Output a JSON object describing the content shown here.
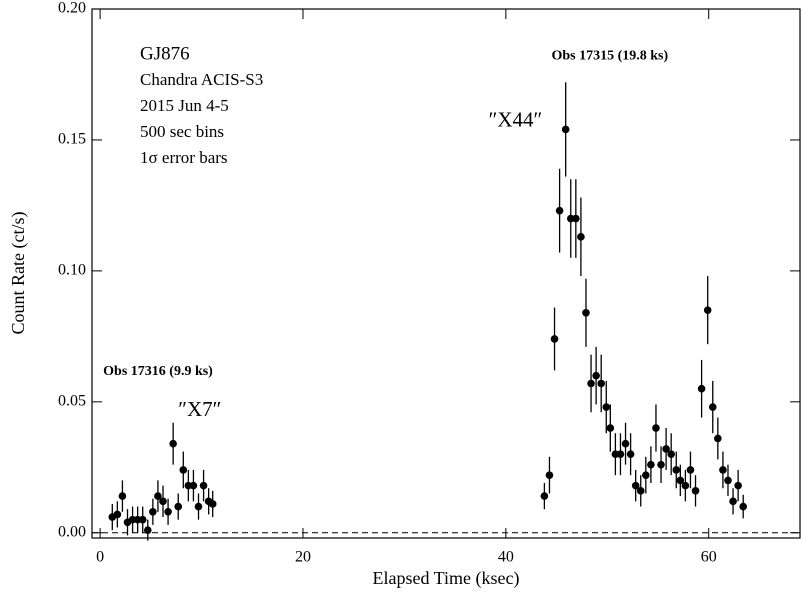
{
  "chart_data": {
    "type": "scatter",
    "xlabel": "Elapsed Time (ksec)",
    "ylabel": "Count Rate (ct/s)",
    "xlim": [
      -0.8,
      69
    ],
    "xticks": [
      0,
      20,
      40,
      60
    ],
    "ylim": [
      -0.002,
      0.2
    ],
    "yticks": [
      {
        "value": 0,
        "label": "0.00"
      },
      {
        "value": 0.05,
        "label": "0.05"
      },
      {
        "value": 0.1,
        "label": "0.10"
      },
      {
        "value": 0.15,
        "label": "0.15"
      },
      {
        "value": 0.2,
        "label": "0.20"
      }
    ],
    "reference_line": 0,
    "info_lines": [
      "GJ876",
      "Chandra ACIS-S3",
      "2015 Jun 4-5",
      "500 sec bins",
      "1σ error bars"
    ],
    "annotations": [
      {
        "text": "Obs 17315 (19.8 ks)",
        "x": 44.5,
        "y": 0.182,
        "color": "#000000"
      },
      {
        "text": "″X44″",
        "x": 38.3,
        "y": 0.157,
        "color": "#e8262a"
      },
      {
        "text": "Obs 17316 (9.9 ks)",
        "x": 0.3,
        "y": 0.0615,
        "color": "#000000"
      },
      {
        "text": "″X7″",
        "x": 7.7,
        "y": 0.0465,
        "color": "#e8262a"
      }
    ],
    "series": [
      {
        "color": "#000000",
        "x": [
          1.2,
          1.7,
          2.2,
          2.7,
          3.2,
          3.7,
          4.2,
          4.7,
          5.2,
          5.7,
          6.2,
          6.7,
          7.2,
          7.7,
          8.2,
          8.7,
          9.2,
          9.7,
          10.2,
          10.7,
          11.1,
          43.8,
          44.3,
          44.8,
          45.3,
          45.9,
          46.4,
          46.9,
          47.4,
          47.9,
          48.4,
          48.9,
          49.4,
          49.9,
          50.3,
          50.8,
          51.3,
          51.8,
          52.3,
          52.8,
          53.3,
          53.8,
          54.3,
          54.8,
          55.3,
          55.8,
          56.3,
          56.8,
          57.2,
          57.7,
          58.2,
          58.7,
          59.3,
          59.9,
          60.4,
          60.9,
          61.4,
          61.9,
          62.4,
          62.9,
          63.4
        ],
        "values": [
          0.006,
          0.007,
          0.014,
          0.004,
          0.005,
          0.005,
          0.005,
          0.001,
          0.008,
          0.014,
          0.012,
          0.008,
          0.034,
          0.01,
          0.024,
          0.018,
          0.018,
          0.01,
          0.018,
          0.012,
          0.011,
          0.014,
          0.022,
          0.074,
          0.123,
          0.154,
          0.12,
          0.12,
          0.113,
          0.084,
          0.057,
          0.06,
          0.057,
          0.048,
          0.04,
          0.03,
          0.03,
          0.034,
          0.03,
          0.018,
          0.016,
          0.022,
          0.026,
          0.04,
          0.026,
          0.032,
          0.03,
          0.024,
          0.02,
          0.018,
          0.024,
          0.016,
          0.055,
          0.085,
          0.048,
          0.036,
          0.024,
          0.02,
          0.012,
          0.018,
          0.01
        ],
        "errors": [
          0.005,
          0.005,
          0.006,
          0.005,
          0.005,
          0.005,
          0.005,
          0.004,
          0.005,
          0.006,
          0.006,
          0.005,
          0.008,
          0.005,
          0.007,
          0.006,
          0.006,
          0.005,
          0.006,
          0.005,
          0.005,
          0.005,
          0.007,
          0.012,
          0.016,
          0.018,
          0.015,
          0.015,
          0.015,
          0.013,
          0.011,
          0.011,
          0.011,
          0.01,
          0.009,
          0.008,
          0.008,
          0.008,
          0.008,
          0.006,
          0.006,
          0.007,
          0.007,
          0.009,
          0.007,
          0.008,
          0.008,
          0.007,
          0.006,
          0.006,
          0.007,
          0.006,
          0.011,
          0.013,
          0.01,
          0.008,
          0.007,
          0.006,
          0.005,
          0.006,
          0.0045
        ]
      }
    ]
  }
}
